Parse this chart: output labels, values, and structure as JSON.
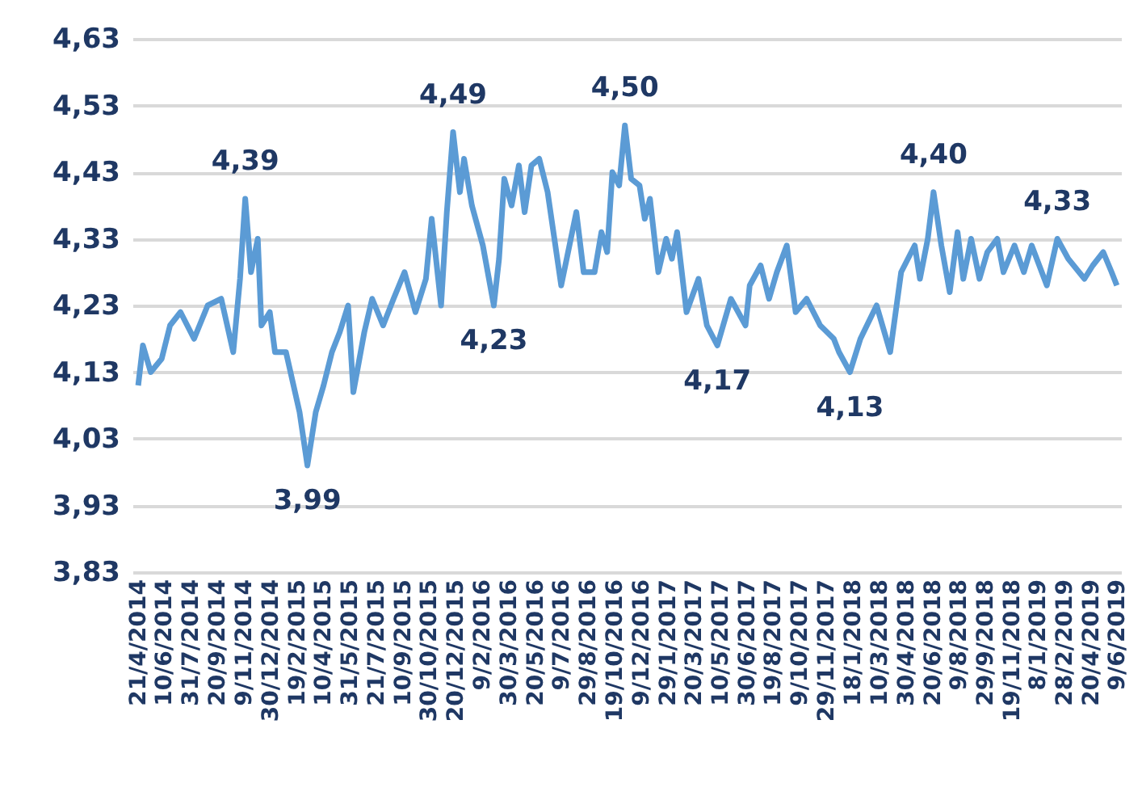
{
  "chart_data": {
    "type": "line",
    "x": [
      "2014-04-21",
      "2014-04-30",
      "2014-05-15",
      "2014-06-05",
      "2014-06-21",
      "2014-07-11",
      "2014-08-06",
      "2014-09-01",
      "2014-09-27",
      "2014-10-20",
      "2014-11-02",
      "2014-11-12",
      "2014-11-23",
      "2014-12-06",
      "2014-12-13",
      "2014-12-29",
      "2015-01-08",
      "2015-01-29",
      "2015-02-24",
      "2015-03-11",
      "2015-03-27",
      "2015-04-11",
      "2015-04-27",
      "2015-05-12",
      "2015-05-28",
      "2015-06-07",
      "2015-06-28",
      "2015-07-13",
      "2015-08-03",
      "2015-08-23",
      "2015-09-13",
      "2015-10-04",
      "2015-10-24",
      "2015-11-04",
      "2015-11-22",
      "2015-12-03",
      "2015-12-15",
      "2015-12-28",
      "2016-01-05",
      "2016-01-20",
      "2016-02-10",
      "2016-03-02",
      "2016-03-12",
      "2016-03-22",
      "2016-04-05",
      "2016-04-19",
      "2016-04-30",
      "2016-05-13",
      "2016-05-28",
      "2016-06-13",
      "2016-07-09",
      "2016-08-07",
      "2016-08-21",
      "2016-09-11",
      "2016-09-24",
      "2016-10-05",
      "2016-10-15",
      "2016-10-28",
      "2016-11-08",
      "2016-11-20",
      "2016-12-06",
      "2016-12-16",
      "2016-12-26",
      "2017-01-11",
      "2017-01-26",
      "2017-02-06",
      "2017-02-16",
      "2017-03-06",
      "2017-03-29",
      "2017-04-14",
      "2017-05-04",
      "2017-05-30",
      "2017-06-27",
      "2017-07-05",
      "2017-07-26",
      "2017-08-11",
      "2017-08-26",
      "2017-09-14",
      "2017-10-01",
      "2017-10-22",
      "2017-11-17",
      "2017-12-13",
      "2017-12-23",
      "2018-01-13",
      "2018-02-02",
      "2018-03-05",
      "2018-03-31",
      "2018-04-21",
      "2018-05-17",
      "2018-05-27",
      "2018-06-11",
      "2018-06-22",
      "2018-07-07",
      "2018-07-23",
      "2018-08-07",
      "2018-08-18",
      "2018-09-02",
      "2018-09-18",
      "2018-10-03",
      "2018-10-22",
      "2018-11-03",
      "2018-11-24",
      "2018-12-12",
      "2018-12-27",
      "2019-01-25",
      "2019-02-14",
      "2019-03-07",
      "2019-04-07",
      "2019-04-23",
      "2019-05-13",
      "2019-05-29",
      "2019-06-08"
    ],
    "series": [
      {
        "color": "#5b9bd5",
        "values": [
          4.11,
          4.17,
          4.13,
          4.15,
          4.2,
          4.22,
          4.18,
          4.23,
          4.24,
          4.16,
          4.27,
          4.39,
          4.28,
          4.33,
          4.2,
          4.22,
          4.16,
          4.16,
          4.07,
          3.99,
          4.07,
          4.11,
          4.16,
          4.19,
          4.23,
          4.1,
          4.19,
          4.24,
          4.2,
          4.24,
          4.28,
          4.22,
          4.27,
          4.36,
          4.23,
          4.37,
          4.49,
          4.4,
          4.45,
          4.38,
          4.32,
          4.23,
          4.3,
          4.42,
          4.38,
          4.44,
          4.37,
          4.44,
          4.45,
          4.4,
          4.26,
          4.37,
          4.28,
          4.28,
          4.34,
          4.31,
          4.43,
          4.41,
          4.5,
          4.42,
          4.41,
          4.36,
          4.39,
          4.28,
          4.33,
          4.3,
          4.34,
          4.22,
          4.27,
          4.2,
          4.17,
          4.24,
          4.2,
          4.26,
          4.29,
          4.24,
          4.28,
          4.32,
          4.22,
          4.24,
          4.2,
          4.18,
          4.16,
          4.13,
          4.18,
          4.23,
          4.16,
          4.28,
          4.32,
          4.27,
          4.33,
          4.4,
          4.32,
          4.25,
          4.34,
          4.27,
          4.33,
          4.27,
          4.31,
          4.33,
          4.28,
          4.32,
          4.28,
          4.32,
          4.26,
          4.33,
          4.3,
          4.27,
          4.29,
          4.31,
          4.28,
          4.26
        ]
      }
    ],
    "ylim": [
      3.83,
      4.63
    ],
    "yticks": [
      {
        "value": 3.83,
        "label": "3,83"
      },
      {
        "value": 3.93,
        "label": "3,93"
      },
      {
        "value": 4.03,
        "label": "4,03"
      },
      {
        "value": 4.13,
        "label": "4,13"
      },
      {
        "value": 4.23,
        "label": "4,23"
      },
      {
        "value": 4.33,
        "label": "4,33"
      },
      {
        "value": 4.43,
        "label": "4,43"
      },
      {
        "value": 4.53,
        "label": "4,53"
      },
      {
        "value": 4.63,
        "label": "4,63"
      }
    ],
    "xlim": [
      "2014-04-10",
      "2019-06-16"
    ],
    "xticks": [
      {
        "value": "2014-04-21",
        "label": "21/4/2014"
      },
      {
        "value": "2014-06-10",
        "label": "10/6/2014"
      },
      {
        "value": "2014-07-31",
        "label": "31/7/2014"
      },
      {
        "value": "2014-09-20",
        "label": "20/9/2014"
      },
      {
        "value": "2014-11-09",
        "label": "9/11/2014"
      },
      {
        "value": "2014-12-30",
        "label": "30/12/2014"
      },
      {
        "value": "2015-02-19",
        "label": "19/2/2015"
      },
      {
        "value": "2015-04-10",
        "label": "10/4/2015"
      },
      {
        "value": "2015-05-31",
        "label": "31/5/2015"
      },
      {
        "value": "2015-07-21",
        "label": "21/7/2015"
      },
      {
        "value": "2015-09-10",
        "label": "10/9/2015"
      },
      {
        "value": "2015-10-30",
        "label": "30/10/2015"
      },
      {
        "value": "2015-12-20",
        "label": "20/12/2015"
      },
      {
        "value": "2016-02-09",
        "label": "9/2/2016"
      },
      {
        "value": "2016-03-30",
        "label": "30/3/2016"
      },
      {
        "value": "2016-05-20",
        "label": "20/5/2016"
      },
      {
        "value": "2016-07-09",
        "label": "9/7/2016"
      },
      {
        "value": "2016-08-29",
        "label": "29/8/2016"
      },
      {
        "value": "2016-10-19",
        "label": "19/10/2016"
      },
      {
        "value": "2016-12-09",
        "label": "9/12/2016"
      },
      {
        "value": "2017-01-29",
        "label": "29/1/2017"
      },
      {
        "value": "2017-03-20",
        "label": "20/3/2017"
      },
      {
        "value": "2017-05-10",
        "label": "10/5/2017"
      },
      {
        "value": "2017-06-30",
        "label": "30/6/2017"
      },
      {
        "value": "2017-08-19",
        "label": "19/8/2017"
      },
      {
        "value": "2017-10-09",
        "label": "9/10/2017"
      },
      {
        "value": "2017-11-29",
        "label": "29/11/2017"
      },
      {
        "value": "2018-01-18",
        "label": "18/1/2018"
      },
      {
        "value": "2018-03-10",
        "label": "10/3/2018"
      },
      {
        "value": "2018-04-30",
        "label": "30/4/2018"
      },
      {
        "value": "2018-06-20",
        "label": "20/6/2018"
      },
      {
        "value": "2018-08-09",
        "label": "9/8/2018"
      },
      {
        "value": "2018-09-29",
        "label": "29/9/2018"
      },
      {
        "value": "2018-11-19",
        "label": "19/11/2018"
      },
      {
        "value": "2019-01-08",
        "label": "8/1/2019"
      },
      {
        "value": "2019-02-28",
        "label": "28/2/2019"
      },
      {
        "value": "2019-04-20",
        "label": "20/4/2019"
      },
      {
        "value": "2019-06-09",
        "label": "9/6/2019"
      }
    ],
    "grid": "y",
    "marker": "none",
    "line_style": "solid",
    "annotations": [
      {
        "text": "4,39",
        "x": "2014-11-12",
        "y": 4.39
      },
      {
        "text": "3,99",
        "x": "2015-03-11",
        "y": 3.99
      },
      {
        "text": "4,49",
        "x": "2015-12-15",
        "y": 4.49
      },
      {
        "text": "4,23",
        "x": "2016-03-02",
        "y": 4.23
      },
      {
        "text": "4,50",
        "x": "2016-11-08",
        "y": 4.5
      },
      {
        "text": "4,17",
        "x": "2017-05-04",
        "y": 4.17
      },
      {
        "text": "4,13",
        "x": "2018-01-13",
        "y": 4.13
      },
      {
        "text": "4,40",
        "x": "2018-06-22",
        "y": 4.4
      },
      {
        "text": "4,33",
        "x": "2019-02-14",
        "y": 4.33
      }
    ]
  }
}
